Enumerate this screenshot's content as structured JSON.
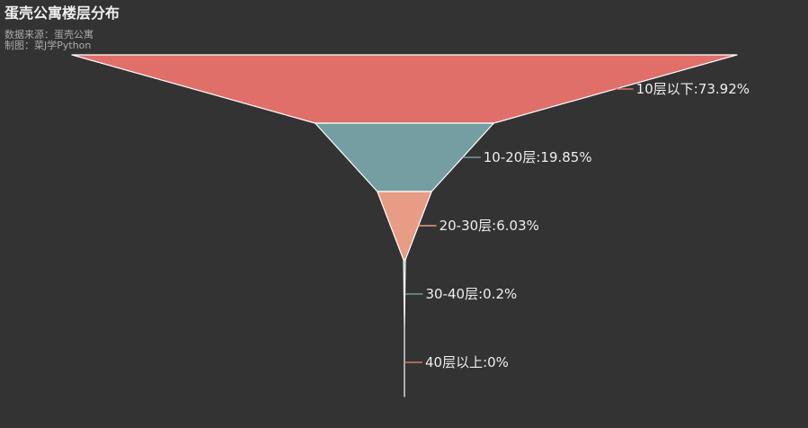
{
  "chart_data": {
    "type": "funnel",
    "title": "蛋壳公寓楼层分布",
    "subtitle": "数据来源：蛋壳公寓\n制图：菜J学Python",
    "categories": [
      "10层以下",
      "10-20层",
      "20-30层",
      "30-40层",
      "40层以上"
    ],
    "values": [
      73.92,
      19.85,
      6.03,
      0.2,
      0
    ],
    "labels": [
      "10层以下:73.92%",
      "10-20层:19.85%",
      "20-30层:6.03%",
      "30-40层:0.2%",
      "40层以上:0%"
    ],
    "colors": [
      "#e06f6a",
      "#759ea2",
      "#e89c86",
      "#6f9f90",
      "#cf7c61"
    ],
    "sort": "descending"
  }
}
